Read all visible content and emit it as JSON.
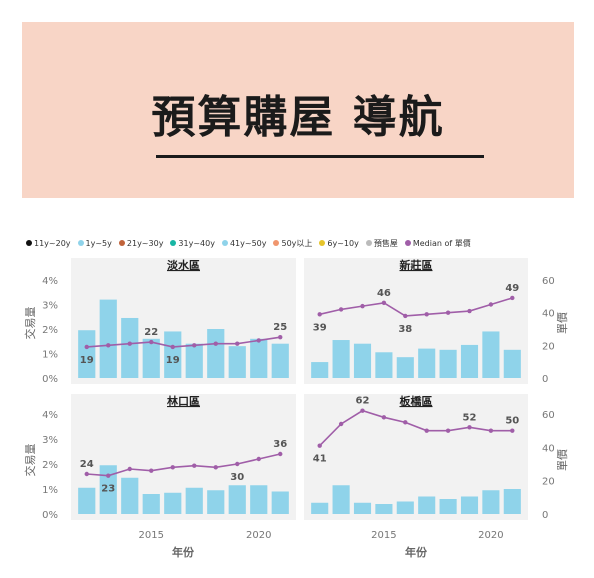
{
  "banner": {
    "title": "預算購屋 導航"
  },
  "legend": [
    {
      "label": "11y~20y",
      "color": "#111111"
    },
    {
      "label": "1y~5y",
      "color": "#8fd3ea"
    },
    {
      "label": "21y~30y",
      "color": "#c0633a"
    },
    {
      "label": "31y~40y",
      "color": "#18b6a4"
    },
    {
      "label": "41y~50y",
      "color": "#8fd3ea"
    },
    {
      "label": "50y以上",
      "color": "#f0966e"
    },
    {
      "label": "6y~10y",
      "color": "#e6c42a"
    },
    {
      "label": "預售屋",
      "color": "#bbbbbb"
    },
    {
      "label": "Median of 單價",
      "color": "#a05ea8"
    }
  ],
  "colors": {
    "bar": "#8fd3ea",
    "line": "#a05ea8",
    "panel": "#f2f2f2"
  },
  "axes": {
    "left_label": "交易量",
    "right_label": "單價",
    "x_label": "年份",
    "top_left_ticks": [
      "0%",
      "1%",
      "2%",
      "3%",
      "4%"
    ],
    "bottom_left_ticks": [
      "0%",
      "1%",
      "2%",
      "3%",
      "4%"
    ],
    "top_right_ticks": [
      "0",
      "20",
      "40",
      "60"
    ],
    "bottom_right_ticks": [
      "0",
      "20",
      "40",
      "60"
    ],
    "x_ticks": [
      "2015",
      "2020"
    ]
  },
  "chart_data": [
    {
      "type": "bar+line",
      "title": "淡水區",
      "x": [
        2012,
        2013,
        2014,
        2015,
        2016,
        2017,
        2018,
        2019,
        2020,
        2021
      ],
      "bar_values": [
        1.95,
        3.2,
        2.45,
        1.6,
        1.9,
        1.4,
        2.0,
        1.3,
        1.6,
        1.4
      ],
      "line_values": [
        19,
        20,
        21,
        22,
        19,
        20,
        21,
        21,
        23,
        25
      ],
      "data_labels": [
        {
          "i": 0,
          "text": "19"
        },
        {
          "i": 3,
          "text": "22"
        },
        {
          "i": 4,
          "text": "19"
        },
        {
          "i": 9,
          "text": "25"
        }
      ],
      "ylim": [
        0,
        4
      ],
      "y2lim": [
        0,
        60
      ]
    },
    {
      "type": "bar+line",
      "title": "新莊區",
      "x": [
        2012,
        2013,
        2014,
        2015,
        2016,
        2017,
        2018,
        2019,
        2020,
        2021
      ],
      "bar_values": [
        0.65,
        1.55,
        1.4,
        1.05,
        0.85,
        1.2,
        1.15,
        1.35,
        1.9,
        1.15
      ],
      "line_values": [
        39,
        42,
        44,
        46,
        38,
        39,
        40,
        41,
        45,
        49
      ],
      "data_labels": [
        {
          "i": 0,
          "text": "39"
        },
        {
          "i": 3,
          "text": "46"
        },
        {
          "i": 4,
          "text": "38"
        },
        {
          "i": 9,
          "text": "49"
        }
      ],
      "ylim": [
        0,
        4
      ],
      "y2lim": [
        0,
        60
      ]
    },
    {
      "type": "bar+line",
      "title": "林口區",
      "x": [
        2012,
        2013,
        2014,
        2015,
        2016,
        2017,
        2018,
        2019,
        2020,
        2021
      ],
      "bar_values": [
        1.05,
        1.95,
        1.45,
        0.8,
        0.85,
        1.05,
        0.95,
        1.15,
        1.15,
        0.9
      ],
      "line_values": [
        24,
        23,
        27,
        26,
        28,
        29,
        28,
        30,
        33,
        36
      ],
      "data_labels": [
        {
          "i": 0,
          "text": "24"
        },
        {
          "i": 1,
          "text": "23"
        },
        {
          "i": 7,
          "text": "30"
        },
        {
          "i": 9,
          "text": "36"
        }
      ],
      "ylim": [
        0,
        4
      ],
      "y2lim": [
        0,
        60
      ]
    },
    {
      "type": "bar+line",
      "title": "板橋區",
      "x": [
        2012,
        2013,
        2014,
        2015,
        2016,
        2017,
        2018,
        2019,
        2020,
        2021
      ],
      "bar_values": [
        0.45,
        1.15,
        0.45,
        0.4,
        0.5,
        0.7,
        0.6,
        0.7,
        0.95,
        1.0
      ],
      "line_values": [
        41,
        54,
        62,
        58,
        55,
        50,
        50,
        52,
        50,
        50
      ],
      "data_labels": [
        {
          "i": 0,
          "text": "41"
        },
        {
          "i": 2,
          "text": "62"
        },
        {
          "i": 7,
          "text": "52"
        },
        {
          "i": 9,
          "text": "50"
        }
      ],
      "ylim": [
        0,
        4
      ],
      "y2lim": [
        0,
        60
      ]
    }
  ]
}
